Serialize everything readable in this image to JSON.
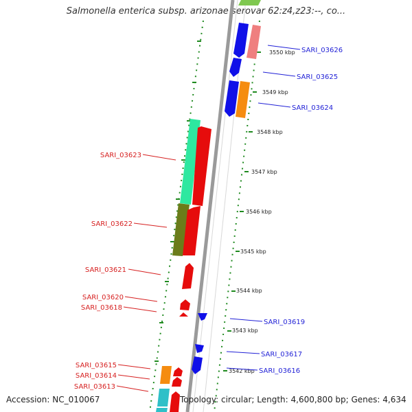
{
  "title": "Salmonella enterica subsp. arizonae serovar 62:z4,z23:--, co...",
  "accession": "Accession: NC_010067",
  "summary": "Topology: circular; Length: 4,600,800 bp; Genes: 4,634",
  "colors": {
    "forward_label": "#1f1fd6",
    "reverse_label": "#d61f1f",
    "backbone": "#9a9a9a",
    "tick": "#1f8a1f"
  },
  "kbp_ticks": [
    "3550 kbp",
    "3549 kbp",
    "3548 kbp",
    "3547 kbp",
    "3546 kbp",
    "3545 kbp",
    "3544 kbp",
    "3543 kbp",
    "3542 kbp"
  ],
  "forward_genes": [
    "SARI_03626",
    "SARI_03625",
    "SARI_03624",
    "SARI_03619",
    "SARI_03617",
    "SARI_03616"
  ],
  "reverse_genes": [
    "SARI_03623",
    "SARI_03622",
    "SARI_03621",
    "SARI_03620",
    "SARI_03618",
    "SARI_03615",
    "SARI_03614",
    "SARI_03613"
  ]
}
